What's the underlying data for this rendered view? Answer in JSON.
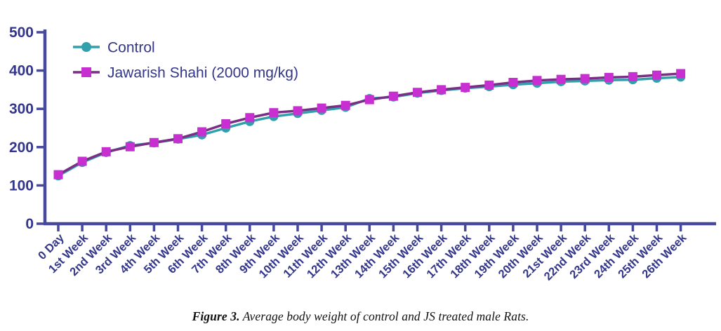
{
  "figure_caption": {
    "prefix": "Figure 3.",
    "text": " Average body weight of control and JS treated male Rats."
  },
  "chart_data": {
    "type": "line",
    "title": "",
    "xlabel": "",
    "ylabel": "",
    "grid": false,
    "legend_position": "top-left",
    "ylim": [
      0,
      500
    ],
    "yticks": [
      0,
      100,
      200,
      300,
      400,
      500
    ],
    "axis_color": "#45489b",
    "text_color": "#33368b",
    "categories": [
      "0 Day",
      "1st Week",
      "2nd Week",
      "3rd Week",
      "4th Week",
      "5th Week",
      "6th Week",
      "7th Week",
      "8th Week",
      "9th Week",
      "10th Week",
      "11th Week",
      "12th Week",
      "13th Week",
      "14th Week",
      "15th Week",
      "16th Week",
      "17th Week",
      "18th Week",
      "19th Week",
      "20th Week",
      "21st Week",
      "22nd Week",
      "23rd Week",
      "24th Week",
      "25th Week",
      "26th Week"
    ],
    "series": [
      {
        "name": "Control",
        "marker": "circle",
        "marker_color": "#2fa0ac",
        "line_color": "#2fa0ac",
        "values": [
          125,
          160,
          186,
          204,
          211,
          221,
          232,
          250,
          267,
          280,
          288,
          296,
          304,
          327,
          331,
          341,
          348,
          354,
          358,
          363,
          367,
          371,
          373,
          375,
          376,
          380,
          383
        ]
      },
      {
        "name": "Jawarish Shahi (2000 mg/kg)",
        "marker": "square",
        "marker_color": "#c72fd0",
        "line_color": "#7b2e86",
        "values": [
          128,
          163,
          188,
          201,
          212,
          222,
          240,
          261,
          277,
          290,
          295,
          302,
          309,
          324,
          333,
          343,
          350,
          356,
          362,
          369,
          374,
          377,
          379,
          382,
          384,
          388,
          392
        ]
      }
    ]
  }
}
